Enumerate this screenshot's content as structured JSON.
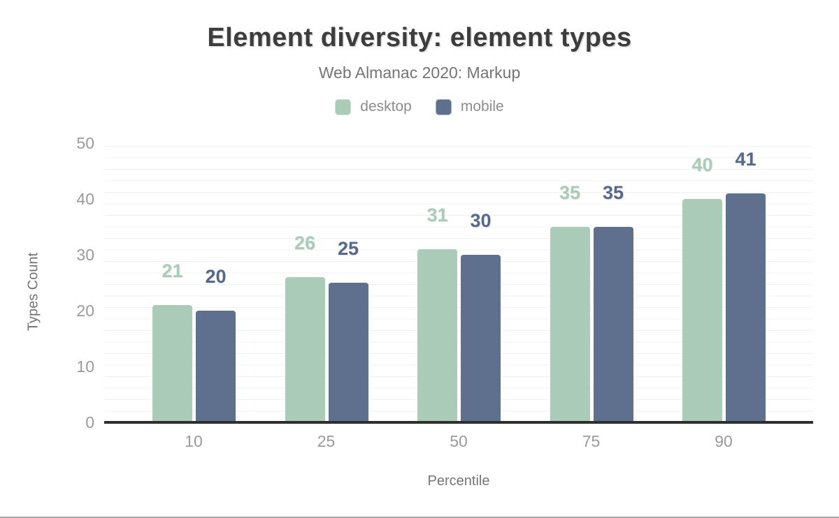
{
  "chart": {
    "title": "Element diversity: element types",
    "subtitle": "Web Almanac 2020: Markup",
    "xlabel": "Percentile",
    "ylabel": "Types Count"
  },
  "chart_data": {
    "type": "bar",
    "title": "Element diversity: element types",
    "subtitle": "Web Almanac 2020: Markup",
    "categories": [
      "10",
      "25",
      "50",
      "75",
      "90"
    ],
    "series": [
      {
        "name": "desktop",
        "color": "#a9cbb8",
        "label_color": "#a9cbb8",
        "values": [
          21,
          26,
          31,
          35,
          40
        ]
      },
      {
        "name": "mobile",
        "color": "#5e708d",
        "label_color": "#57698a",
        "values": [
          20,
          25,
          30,
          35,
          41
        ]
      }
    ],
    "xlabel": "Percentile",
    "ylabel": "Types Count",
    "ylim": [
      0,
      50
    ],
    "yticks": [
      0,
      10,
      20,
      30,
      40,
      50
    ],
    "grid": "horizontal minor gridlines every 2 units",
    "grid_color": "#f2f2f2",
    "axis_line_color": "#2f2f2f",
    "legend_position": "top"
  }
}
